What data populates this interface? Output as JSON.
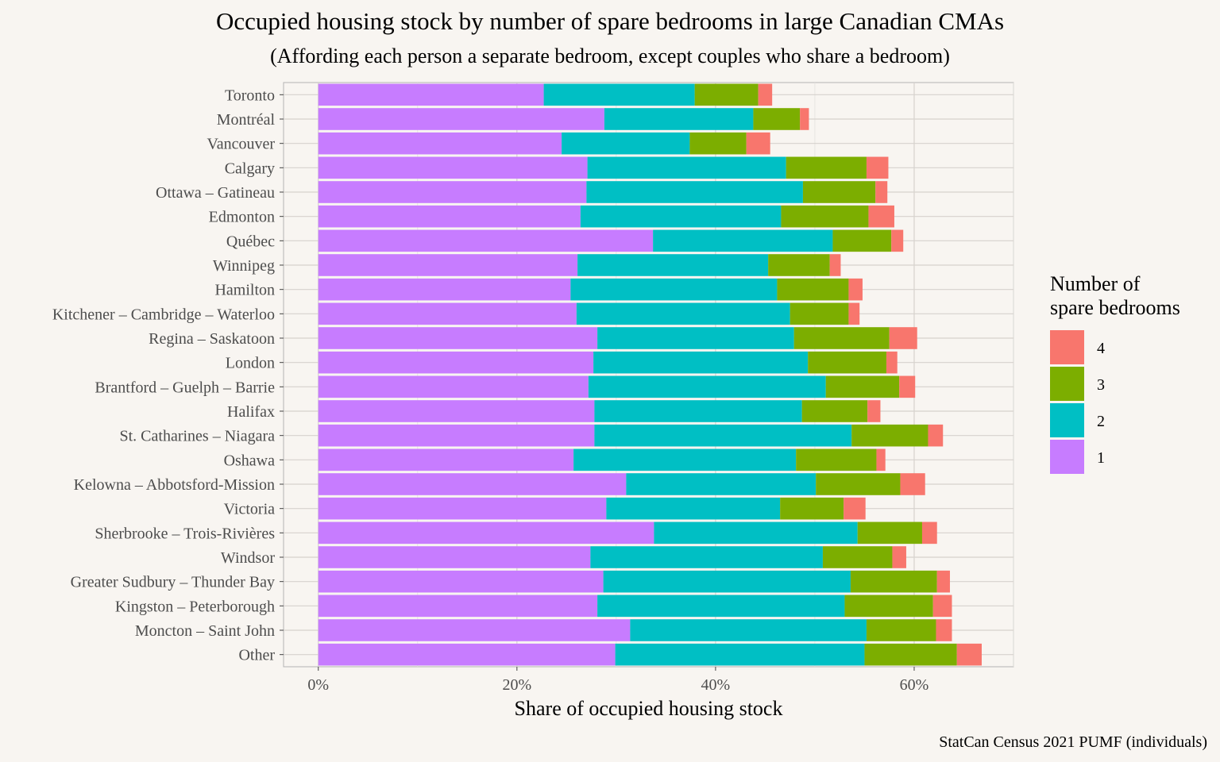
{
  "chart_data": {
    "type": "bar",
    "orientation": "horizontal",
    "stacked": true,
    "title": "Occupied housing stock by number of spare bedrooms in large Canadian CMAs",
    "subtitle": "(Affording each person a separate bedroom, except couples who share a bedroom)",
    "xlabel": "Share of occupied housing stock",
    "ylabel": "",
    "caption": "StatCan Census 2021 PUMF (individuals)",
    "xlim": [
      -3.5,
      70.0
    ],
    "x_ticks": [
      0,
      20,
      40,
      60
    ],
    "x_tick_labels": [
      "0%",
      "20%",
      "40%",
      "60%"
    ],
    "grid": true,
    "legend": {
      "title_lines": [
        "Number of",
        "spare bedrooms"
      ],
      "position": "right",
      "entries": [
        "4",
        "3",
        "2",
        "1"
      ]
    },
    "categories": [
      "Toronto",
      "Montréal",
      "Vancouver",
      "Calgary",
      "Ottawa – Gatineau",
      "Edmonton",
      "Québec",
      "Winnipeg",
      "Hamilton",
      "Kitchener – Cambridge – Waterloo",
      "Regina – Saskatoon",
      "London",
      "Brantford – Guelph – Barrie",
      "Halifax",
      "St. Catharines – Niagara",
      "Oshawa",
      "Kelowna – Abbotsford-Mission",
      "Victoria",
      "Sherbrooke – Trois-Rivières",
      "Windsor",
      "Greater Sudbury – Thunder Bay",
      "Kingston – Peterborough",
      "Moncton – Saint John",
      "Other"
    ],
    "series": [
      {
        "name": "1",
        "color": "#c77cff",
        "values": [
          22.7,
          28.8,
          24.5,
          27.1,
          27.0,
          26.4,
          33.7,
          26.1,
          25.4,
          26.0,
          28.1,
          27.7,
          27.2,
          27.8,
          27.8,
          25.7,
          31.0,
          29.0,
          33.8,
          27.4,
          28.7,
          28.1,
          31.4,
          29.9
        ]
      },
      {
        "name": "2",
        "color": "#00bfc4",
        "values": [
          15.2,
          15.0,
          12.9,
          20.0,
          21.8,
          20.2,
          18.1,
          19.2,
          20.8,
          21.5,
          19.8,
          21.6,
          23.9,
          20.9,
          25.9,
          22.4,
          19.1,
          17.5,
          20.5,
          23.4,
          24.9,
          24.9,
          23.8,
          25.1
        ]
      },
      {
        "name": "3",
        "color": "#7cae00",
        "values": [
          6.4,
          4.7,
          5.7,
          8.1,
          7.3,
          8.8,
          5.9,
          6.2,
          7.2,
          5.9,
          9.6,
          7.9,
          7.4,
          6.6,
          7.7,
          8.1,
          8.5,
          6.4,
          6.5,
          7.0,
          8.7,
          8.9,
          7.0,
          9.3
        ]
      },
      {
        "name": "4",
        "color": "#f8766d",
        "values": [
          1.4,
          0.9,
          2.4,
          2.2,
          1.2,
          2.6,
          1.2,
          1.1,
          1.4,
          1.1,
          2.8,
          1.1,
          1.6,
          1.3,
          1.5,
          0.9,
          2.5,
          2.2,
          1.5,
          1.4,
          1.3,
          1.9,
          1.6,
          2.5
        ]
      }
    ]
  }
}
